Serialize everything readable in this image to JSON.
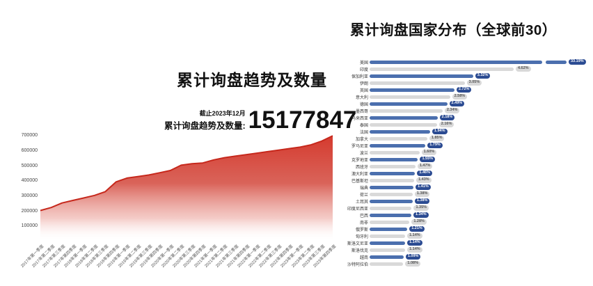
{
  "colors": {
    "area_red": "#d03428",
    "area_line": "#c6281c",
    "bar_blue": "#4b6fae",
    "badge_blue": "#2b4b92",
    "bar_gray": "#d9d9d9",
    "gray_text": "#555555"
  },
  "chart_data": [
    {
      "type": "area",
      "title": "累计询盘趋势及数量",
      "annotation": {
        "as_of": "截止2023年12月",
        "label": "累计询盘趋势及数量:",
        "value": "15177847"
      },
      "x": [
        "2017年第一季度",
        "2017年第二季度",
        "2017年第三季度",
        "2017年第四季度",
        "2018年第一季度",
        "2018年第二季度",
        "2018年第三季度",
        "2018年第四季度",
        "2019年第一季度",
        "2019年第二季度",
        "2019年第三季度",
        "2019年第四季度",
        "2020年第一季度",
        "2020年第二季度",
        "2020年第三季度",
        "2020年第四季度",
        "2021年第一季度",
        "2021年第二季度",
        "2021年第三季度",
        "2021年第四季度",
        "2022年第一季度",
        "2022年第二季度",
        "2022年第三季度",
        "2022年第四季度",
        "2023年第一季度",
        "2023年第二季度",
        "2023年第三季度",
        "2023年第四季度"
      ],
      "values": [
        205000,
        225000,
        255000,
        272000,
        288000,
        305000,
        330000,
        395000,
        420000,
        430000,
        440000,
        455000,
        470000,
        505000,
        515000,
        520000,
        540000,
        555000,
        565000,
        575000,
        585000,
        595000,
        605000,
        615000,
        625000,
        640000,
        665000,
        700000
      ],
      "ylim": [
        0,
        700000
      ],
      "yticks": [
        700000,
        600000,
        500000,
        400000,
        300000,
        200000,
        100000
      ],
      "grid": false,
      "legend": "none"
    },
    {
      "type": "bar",
      "orientation": "horizontal",
      "title": "累计询盘国家分布（全球前30）",
      "unit": "%",
      "countries": [
        {
          "label": "美国",
          "value": 33.19,
          "color": "blue",
          "truncated": true
        },
        {
          "label": "印度",
          "value": 4.62,
          "color": "gray"
        },
        {
          "label": "保加利亚",
          "value": 3.32,
          "color": "blue"
        },
        {
          "label": "伊朗",
          "value": 3.05,
          "color": "gray"
        },
        {
          "label": "英国",
          "value": 2.72,
          "color": "blue"
        },
        {
          "label": "意大利",
          "value": 2.58,
          "color": "gray"
        },
        {
          "label": "德国",
          "value": 2.49,
          "color": "blue"
        },
        {
          "label": "墨西哥",
          "value": 2.34,
          "color": "gray"
        },
        {
          "label": "马来西亚",
          "value": 2.18,
          "color": "blue"
        },
        {
          "label": "泰国",
          "value": 2.16,
          "color": "gray"
        },
        {
          "label": "法国",
          "value": 1.94,
          "color": "blue"
        },
        {
          "label": "加拿大",
          "value": 1.85,
          "color": "gray"
        },
        {
          "label": "罗马尼亚",
          "value": 1.79,
          "color": "blue"
        },
        {
          "label": "波兰",
          "value": 1.6,
          "color": "gray"
        },
        {
          "label": "克罗地亚",
          "value": 1.55,
          "color": "blue"
        },
        {
          "label": "西班牙",
          "value": 1.47,
          "color": "gray"
        },
        {
          "label": "澳大利亚",
          "value": 1.46,
          "color": "blue"
        },
        {
          "label": "巴基斯坦",
          "value": 1.43,
          "color": "gray"
        },
        {
          "label": "瑞典",
          "value": 1.41,
          "color": "blue"
        },
        {
          "label": "荷兰",
          "value": 1.38,
          "color": "gray"
        },
        {
          "label": "土耳其",
          "value": 1.38,
          "color": "blue"
        },
        {
          "label": "印度尼西亚",
          "value": 1.35,
          "color": "gray"
        },
        {
          "label": "巴西",
          "value": 1.34,
          "color": "blue"
        },
        {
          "label": "南非",
          "value": 1.28,
          "color": "gray"
        },
        {
          "label": "俄罗斯",
          "value": 1.21,
          "color": "blue"
        },
        {
          "label": "匈牙利",
          "value": 1.14,
          "color": "gray"
        },
        {
          "label": "斯洛文尼亚",
          "value": 1.14,
          "color": "blue"
        },
        {
          "label": "斯洛伐克",
          "value": 1.14,
          "color": "gray"
        },
        {
          "label": "越南",
          "value": 1.09,
          "color": "blue"
        },
        {
          "label": "沙特阿拉伯",
          "value": 1.08,
          "color": "gray"
        }
      ]
    }
  ]
}
